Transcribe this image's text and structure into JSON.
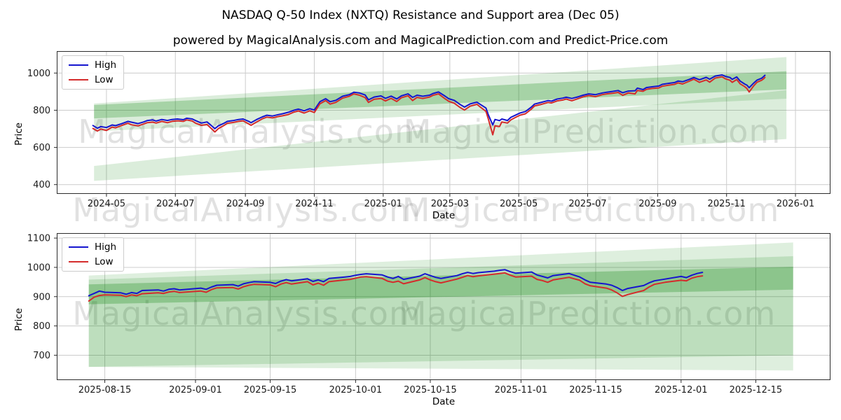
{
  "title": "NASDAQ Q-50 Index (NXTQ) Resistance and Support area (Dec 05)",
  "subtitle": "powered by MagicalAnalysis.com and MagicalPrediction.com and Predict-Price.com",
  "watermark": {
    "left": "MagicalAnalysis.com",
    "right": "MagicalPrediction.com"
  },
  "legend": {
    "high": "High",
    "low": "Low"
  },
  "colors": {
    "high": "#1515cf",
    "low": "#d42b2b",
    "band": "#008000",
    "grid": "#cccccc",
    "spine": "#2b2b2b",
    "watermark": "#808080"
  },
  "chart_data": [
    {
      "type": "line",
      "title": "NASDAQ Q-50 Index (NXTQ) Resistance and Support area (Dec 05)",
      "xlabel": "Date",
      "ylabel": "Price",
      "grid": true,
      "legend_position": "upper left",
      "x_range": [
        "2024-03-18",
        "2026-02-01"
      ],
      "y_range": [
        350,
        1118
      ],
      "y_ticks": [
        400,
        600,
        800,
        1000
      ],
      "x_ticks": [
        {
          "d": "2024-05-01",
          "label": "2024-05"
        },
        {
          "d": "2024-07-01",
          "label": "2024-07"
        },
        {
          "d": "2024-09-01",
          "label": "2024-09"
        },
        {
          "d": "2024-11-01",
          "label": "2024-11"
        },
        {
          "d": "2025-01-01",
          "label": "2025-01"
        },
        {
          "d": "2025-03-01",
          "label": "2025-03"
        },
        {
          "d": "2025-05-01",
          "label": "2025-05"
        },
        {
          "d": "2025-07-01",
          "label": "2025-07"
        },
        {
          "d": "2025-09-01",
          "label": "2025-09"
        },
        {
          "d": "2025-11-01",
          "label": "2025-11"
        },
        {
          "d": "2026-01-01",
          "label": "2026-01"
        }
      ],
      "bands": [
        {
          "x0": "2024-04-20",
          "x1": "2025-12-24",
          "top0": 836,
          "top1": 1086,
          "bot0": 686,
          "bot1": 862,
          "opacity": 0.14
        },
        {
          "x0": "2024-04-20",
          "x1": "2025-12-24",
          "top0": 828,
          "top1": 1010,
          "bot0": 756,
          "bot1": 912,
          "opacity": 0.24
        },
        {
          "x0": "2024-04-20",
          "x1": "2025-12-24",
          "top0": 500,
          "top1": 908,
          "bot0": 420,
          "bot1": 645,
          "opacity": 0.14
        }
      ],
      "x": [
        "2024-04-19",
        "2024-04-23",
        "2024-04-26",
        "2024-05-01",
        "2024-05-06",
        "2024-05-09",
        "2024-05-14",
        "2024-05-20",
        "2024-05-23",
        "2024-05-29",
        "2024-06-03",
        "2024-06-06",
        "2024-06-11",
        "2024-06-14",
        "2024-06-19",
        "2024-06-24",
        "2024-06-28",
        "2024-07-03",
        "2024-07-08",
        "2024-07-11",
        "2024-07-16",
        "2024-07-19",
        "2024-07-24",
        "2024-07-29",
        "2024-08-01",
        "2024-08-05",
        "2024-08-08",
        "2024-08-13",
        "2024-08-16",
        "2024-08-21",
        "2024-08-26",
        "2024-08-30",
        "2024-09-04",
        "2024-09-06",
        "2024-09-11",
        "2024-09-16",
        "2024-09-20",
        "2024-09-25",
        "2024-09-30",
        "2024-10-04",
        "2024-10-09",
        "2024-10-14",
        "2024-10-18",
        "2024-10-23",
        "2024-10-28",
        "2024-11-01",
        "2024-11-06",
        "2024-11-11",
        "2024-11-15",
        "2024-11-20",
        "2024-11-26",
        "2024-12-02",
        "2024-12-06",
        "2024-12-11",
        "2024-12-16",
        "2024-12-19",
        "2024-12-24",
        "2024-12-30",
        "2025-01-03",
        "2025-01-08",
        "2025-01-13",
        "2025-01-17",
        "2025-01-23",
        "2025-01-27",
        "2025-01-31",
        "2025-02-05",
        "2025-02-11",
        "2025-02-14",
        "2025-02-19",
        "2025-02-24",
        "2025-02-28",
        "2025-03-05",
        "2025-03-10",
        "2025-03-14",
        "2025-03-19",
        "2025-03-25",
        "2025-03-28",
        "2025-04-02",
        "2025-04-04",
        "2025-04-08",
        "2025-04-10",
        "2025-04-14",
        "2025-04-16",
        "2025-04-21",
        "2025-04-24",
        "2025-04-29",
        "2025-05-02",
        "2025-05-07",
        "2025-05-12",
        "2025-05-15",
        "2025-05-20",
        "2025-05-27",
        "2025-05-30",
        "2025-06-04",
        "2025-06-09",
        "2025-06-12",
        "2025-06-17",
        "2025-06-23",
        "2025-06-27",
        "2025-07-02",
        "2025-07-08",
        "2025-07-14",
        "2025-07-18",
        "2025-07-23",
        "2025-07-28",
        "2025-08-01",
        "2025-08-06",
        "2025-08-12",
        "2025-08-14",
        "2025-08-19",
        "2025-08-22",
        "2025-08-27",
        "2025-09-02",
        "2025-09-05",
        "2025-09-10",
        "2025-09-16",
        "2025-09-19",
        "2025-09-23",
        "2025-09-29",
        "2025-10-03",
        "2025-10-08",
        "2025-10-14",
        "2025-10-17",
        "2025-10-22",
        "2025-10-28",
        "2025-10-31",
        "2025-11-04",
        "2025-11-06",
        "2025-11-10",
        "2025-11-13",
        "2025-11-17",
        "2025-11-19",
        "2025-11-21",
        "2025-11-25",
        "2025-11-28",
        "2025-12-02",
        "2025-12-04",
        "2025-12-05"
      ],
      "series": [
        {
          "name": "High",
          "color": "high",
          "values": [
            718,
            703,
            712,
            707,
            721,
            717,
            727,
            740,
            736,
            728,
            737,
            744,
            748,
            742,
            750,
            745,
            750,
            753,
            749,
            757,
            753,
            744,
            731,
            737,
            722,
            701,
            716,
            730,
            740,
            744,
            750,
            753,
            740,
            733,
            750,
            764,
            773,
            769,
            776,
            781,
            789,
            800,
            806,
            797,
            808,
            801,
            846,
            862,
            846,
            853,
            875,
            884,
            897,
            893,
            882,
            856,
            871,
            877,
            864,
            876,
            861,
            877,
            888,
            869,
            881,
            875,
            881,
            890,
            898,
            879,
            862,
            853,
            831,
            817,
            834,
            843,
            831,
            812,
            776,
            721,
            750,
            744,
            753,
            745,
            762,
            776,
            785,
            793,
            816,
            833,
            841,
            852,
            849,
            860,
            865,
            870,
            863,
            873,
            881,
            888,
            884,
            893,
            897,
            901,
            906,
            894,
            903,
            905,
            919,
            911,
            922,
            926,
            930,
            939,
            944,
            949,
            957,
            953,
            966,
            976,
            964,
            977,
            967,
            984,
            990,
            982,
            976,
            966,
            979,
            957,
            941,
            935,
            921,
            946,
            962,
            972,
            982,
            988
          ]
        },
        {
          "name": "Low",
          "color": "low",
          "values": [
            702,
            688,
            699,
            691,
            709,
            705,
            717,
            730,
            722,
            716,
            726,
            733,
            736,
            731,
            740,
            733,
            740,
            743,
            740,
            748,
            742,
            730,
            719,
            723,
            706,
            683,
            701,
            718,
            730,
            734,
            740,
            743,
            726,
            719,
            737,
            754,
            763,
            759,
            766,
            770,
            777,
            790,
            796,
            785,
            797,
            788,
            835,
            852,
            833,
            842,
            865,
            875,
            888,
            881,
            868,
            842,
            859,
            863,
            850,
            864,
            847,
            867,
            878,
            852,
            869,
            863,
            871,
            880,
            888,
            865,
            848,
            837,
            815,
            801,
            822,
            832,
            817,
            794,
            754,
            668,
            716,
            712,
            737,
            731,
            748,
            764,
            773,
            781,
            805,
            823,
            830,
            842,
            839,
            850,
            855,
            860,
            851,
            863,
            872,
            879,
            873,
            884,
            888,
            891,
            896,
            880,
            893,
            888,
            906,
            902,
            912,
            917,
            920,
            929,
            934,
            939,
            947,
            941,
            956,
            967,
            950,
            963,
            951,
            973,
            980,
            969,
            961,
            950,
            965,
            942,
            927,
            917,
            898,
            931,
            951,
            961,
            970,
            977
          ]
        }
      ]
    },
    {
      "type": "line",
      "xlabel": "Date",
      "ylabel": "Price",
      "grid": true,
      "legend_position": "upper left",
      "x_range": [
        "2025-08-06",
        "2025-12-29"
      ],
      "y_range": [
        615,
        1117
      ],
      "y_ticks": [
        700,
        800,
        900,
        1000,
        1100
      ],
      "x_ticks": [
        {
          "d": "2025-08-15",
          "label": "2025-08-15"
        },
        {
          "d": "2025-09-01",
          "label": "2025-09-01"
        },
        {
          "d": "2025-09-15",
          "label": "2025-09-15"
        },
        {
          "d": "2025-10-01",
          "label": "2025-10-01"
        },
        {
          "d": "2025-10-15",
          "label": "2025-10-15"
        },
        {
          "d": "2025-11-01",
          "label": "2025-11-01"
        },
        {
          "d": "2025-11-15",
          "label": "2025-11-15"
        },
        {
          "d": "2025-12-01",
          "label": "2025-12-01"
        },
        {
          "d": "2025-12-15",
          "label": "2025-12-15"
        }
      ],
      "bands": [
        {
          "x0": "2025-08-12",
          "x1": "2025-12-22",
          "top0": 972,
          "top1": 1085,
          "bot0": 660,
          "bot1": 648,
          "opacity": 0.13
        },
        {
          "x0": "2025-08-12",
          "x1": "2025-12-22",
          "top0": 958,
          "top1": 1038,
          "bot0": 660,
          "bot1": 700,
          "opacity": 0.15
        },
        {
          "x0": "2025-08-12",
          "x1": "2025-12-22",
          "top0": 942,
          "top1": 1002,
          "bot0": 874,
          "bot1": 924,
          "opacity": 0.26
        }
      ],
      "x": [
        "2025-08-12",
        "2025-08-13",
        "2025-08-14",
        "2025-08-15",
        "2025-08-18",
        "2025-08-19",
        "2025-08-20",
        "2025-08-21",
        "2025-08-22",
        "2025-08-25",
        "2025-08-26",
        "2025-08-27",
        "2025-08-28",
        "2025-08-29",
        "2025-09-02",
        "2025-09-03",
        "2025-09-04",
        "2025-09-05",
        "2025-09-08",
        "2025-09-09",
        "2025-09-10",
        "2025-09-11",
        "2025-09-12",
        "2025-09-15",
        "2025-09-16",
        "2025-09-17",
        "2025-09-18",
        "2025-09-19",
        "2025-09-22",
        "2025-09-23",
        "2025-09-24",
        "2025-09-25",
        "2025-09-26",
        "2025-09-29",
        "2025-09-30",
        "2025-10-01",
        "2025-10-02",
        "2025-10-03",
        "2025-10-06",
        "2025-10-07",
        "2025-10-08",
        "2025-10-09",
        "2025-10-10",
        "2025-10-13",
        "2025-10-14",
        "2025-10-15",
        "2025-10-16",
        "2025-10-17",
        "2025-10-20",
        "2025-10-21",
        "2025-10-22",
        "2025-10-23",
        "2025-10-24",
        "2025-10-27",
        "2025-10-28",
        "2025-10-29",
        "2025-10-30",
        "2025-10-31",
        "2025-11-03",
        "2025-11-04",
        "2025-11-05",
        "2025-11-06",
        "2025-11-07",
        "2025-11-10",
        "2025-11-11",
        "2025-11-12",
        "2025-11-13",
        "2025-11-14",
        "2025-11-17",
        "2025-11-18",
        "2025-11-19",
        "2025-11-20",
        "2025-11-21",
        "2025-11-24",
        "2025-11-25",
        "2025-11-26",
        "2025-11-28",
        "2025-12-01",
        "2025-12-02",
        "2025-12-03",
        "2025-12-04",
        "2025-12-05"
      ],
      "series": [
        {
          "name": "High",
          "color": "high",
          "values": [
            903,
            911,
            919,
            915,
            913,
            908,
            914,
            911,
            921,
            923,
            919,
            925,
            927,
            923,
            929,
            925,
            933,
            939,
            941,
            936,
            944,
            948,
            951,
            949,
            945,
            953,
            958,
            954,
            961,
            952,
            957,
            951,
            962,
            967,
            969,
            973,
            976,
            978,
            974,
            967,
            962,
            969,
            959,
            970,
            978,
            972,
            966,
            962,
            972,
            978,
            983,
            979,
            982,
            987,
            990,
            992,
            985,
            980,
            984,
            974,
            969,
            964,
            972,
            979,
            973,
            967,
            957,
            949,
            943,
            939,
            931,
            921,
            928,
            938,
            947,
            954,
            960,
            969,
            965,
            973,
            979,
            983
          ]
        },
        {
          "name": "Low",
          "color": "low",
          "values": [
            885,
            898,
            904,
            906,
            905,
            900,
            906,
            903,
            910,
            913,
            911,
            916,
            918,
            914,
            919,
            915,
            924,
            930,
            931,
            926,
            934,
            939,
            942,
            940,
            934,
            943,
            948,
            943,
            951,
            940,
            946,
            939,
            951,
            957,
            959,
            963,
            967,
            968,
            962,
            953,
            949,
            953,
            944,
            957,
            965,
            957,
            951,
            947,
            960,
            966,
            972,
            968,
            971,
            977,
            979,
            981,
            973,
            967,
            970,
            959,
            955,
            949,
            957,
            966,
            961,
            956,
            944,
            937,
            929,
            923,
            913,
            901,
            907,
            921,
            933,
            942,
            949,
            956,
            954,
            963,
            968,
            971
          ]
        }
      ]
    }
  ]
}
